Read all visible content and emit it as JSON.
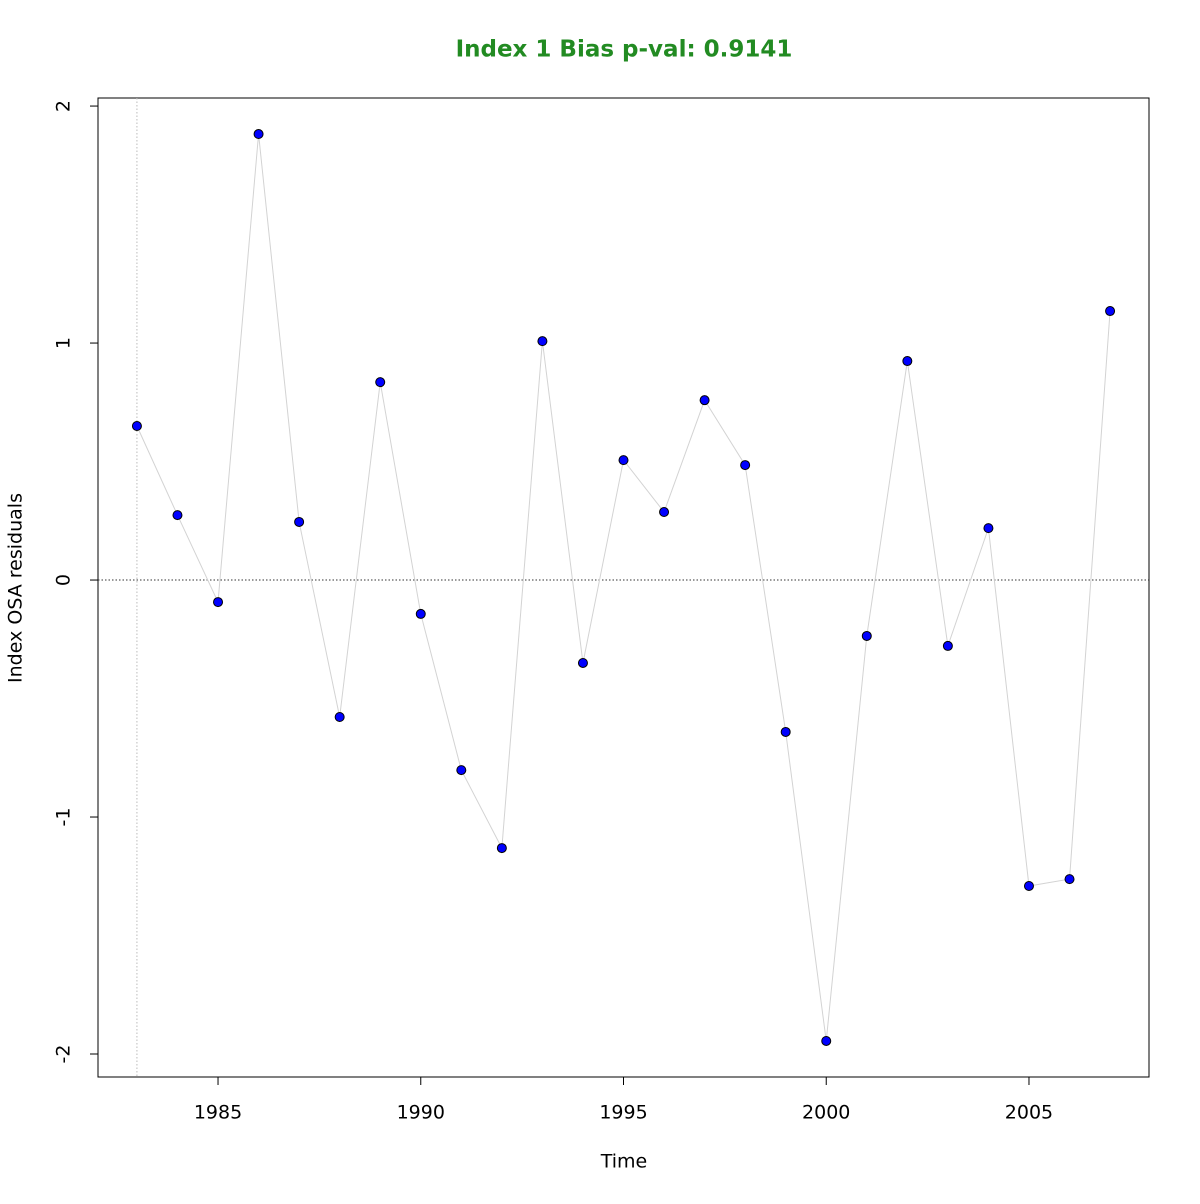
{
  "chart_data": {
    "type": "line",
    "title": "Index 1 Bias p-val: 0.9141",
    "title_color": "#228b22",
    "xlabel": "Time",
    "ylabel": "Index OSA residuals",
    "x": [
      1983,
      1984,
      1985,
      1986,
      1987,
      1988,
      1989,
      1990,
      1991,
      1992,
      1993,
      1994,
      1995,
      1996,
      1997,
      1998,
      1999,
      2000,
      2001,
      2002,
      2003,
      2004,
      2005,
      2006,
      2007
    ],
    "series": [
      {
        "name": "Index 1",
        "color": "#0000ff",
        "line_color": "#d3d3d3",
        "values": [
          0.65,
          0.274,
          -0.093,
          1.882,
          0.245,
          -0.578,
          0.835,
          -0.143,
          -0.802,
          -1.131,
          1.008,
          -0.35,
          0.506,
          0.287,
          0.759,
          0.485,
          -0.641,
          -1.945,
          -0.236,
          0.924,
          -0.278,
          0.219,
          -1.291,
          -1.262,
          1.135
        ]
      }
    ],
    "xlim": [
      1982.04,
      2007.96
    ],
    "ylim": [
      -2.097,
      2.034
    ],
    "xticks": [
      1985,
      1990,
      1995,
      2000,
      2005
    ],
    "yticks": [
      -2,
      -1,
      0,
      1,
      2
    ],
    "hline": 0,
    "vline": 1983
  }
}
